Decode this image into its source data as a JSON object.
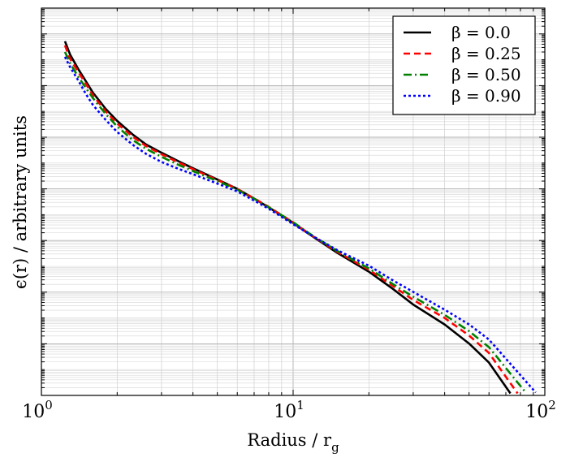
{
  "chart_data": {
    "type": "line",
    "xscale": "log",
    "yscale": "log",
    "xlim": [
      1,
      100
    ],
    "ylim": [
      1,
      1000000000000000
    ],
    "grid": true,
    "legend_position": "top-right",
    "xlabel_main": "Radius / r",
    "xlabel_sub": "g",
    "ylabel": "ϵ(r) / arbitrary units",
    "x_ticks": [
      {
        "value": 1,
        "base": "10",
        "exp": "0"
      },
      {
        "value": 10,
        "base": "10",
        "exp": "1"
      },
      {
        "value": 100,
        "base": "10",
        "exp": "2"
      }
    ],
    "series": [
      {
        "name": "β = 0.0",
        "color": "#000000",
        "dash": "solid",
        "x": [
          1.24,
          1.3,
          1.4,
          1.5,
          1.6,
          1.8,
          2.0,
          2.3,
          2.6,
          3.0,
          3.5,
          4.0,
          5.0,
          6.0,
          7.0,
          8.0,
          10.0,
          12.0,
          15.0,
          20.0,
          25.0,
          30.0,
          40.0,
          50.0,
          60.0,
          73.0
        ],
        "y": [
          52000000000000.0,
          16000000000000.0,
          4400000000000.0,
          1500000000000.0,
          540000000000.0,
          126000000000.0,
          43000000000.0,
          13000000000.0,
          5300000000.0,
          2500000000.0,
          1180000000.0,
          630000000.0,
          230000000.0,
          100000000.0,
          42000000.0,
          19000000.0,
          4800000.0,
          1400000.0,
          330000.0,
          62000.0,
          13000.0,
          3300.0,
          560.0,
          102.0,
          18.7,
          1.2
        ]
      },
      {
        "name": "β = 0.25",
        "color": "#ff0000",
        "dash": "8,5",
        "x": [
          1.24,
          1.3,
          1.4,
          1.5,
          1.6,
          1.8,
          2.0,
          2.3,
          2.6,
          3.0,
          3.5,
          4.0,
          5.0,
          6.0,
          7.0,
          8.0,
          10.0,
          12.0,
          15.0,
          20.0,
          25.0,
          30.0,
          40.0,
          50.0,
          60.0,
          78.0
        ],
        "y": [
          36000000000000.0,
          11000000000000.0,
          3400000000000.0,
          1200000000000.0,
          430000000000.0,
          100000000000.0,
          34000000000.0,
          10700000000.0,
          4600000000.0,
          2200000000.0,
          1060000000.0,
          580000000.0,
          220000000.0,
          99000000.0,
          43000000.0,
          20000000.0,
          5000000.0,
          1450000.0,
          360000.0,
          74000.0,
          16800.0,
          5000.0,
          1000.0,
          210.0,
          44.0,
          1.2
        ]
      },
      {
        "name": "β = 0.50",
        "color": "#008000",
        "dash": "10,4,2,4",
        "x": [
          1.24,
          1.3,
          1.4,
          1.5,
          1.6,
          1.8,
          2.0,
          2.3,
          2.6,
          3.0,
          3.5,
          4.0,
          5.0,
          6.0,
          7.0,
          8.0,
          10.0,
          12.0,
          15.0,
          20.0,
          25.0,
          30.0,
          40.0,
          50.0,
          60.0,
          84.0
        ],
        "y": [
          20000000000000.0,
          7400000000000.0,
          2200000000000.0,
          830000000000.0,
          330000000000.0,
          80000000000.0,
          26000000000.0,
          8000000000.0,
          3600000000.0,
          1730000000.0,
          860000000.0,
          490000000.0,
          200000000.0,
          93000000.0,
          41000000.0,
          19500000.0,
          5100000.0,
          1500000.0,
          390000.0,
          83000.0,
          20000.0,
          6600.0,
          1320.0,
          310.0,
          74.0,
          1.3
        ]
      },
      {
        "name": "β = 0.90",
        "color": "#0000ff",
        "dash": "3,3",
        "x": [
          1.24,
          1.3,
          1.4,
          1.5,
          1.6,
          1.8,
          2.0,
          2.3,
          2.6,
          3.0,
          3.5,
          4.0,
          5.0,
          6.0,
          7.0,
          8.0,
          10.0,
          12.0,
          15.0,
          20.0,
          25.0,
          30.0,
          40.0,
          50.0,
          60.0,
          92.0
        ],
        "y": [
          13000000000000.0,
          5200000000000.0,
          1600000000000.0,
          480000000000.0,
          180000000000.0,
          47000000000.0,
          16000000000.0,
          5200000000.0,
          2300000000.0,
          1100000000.0,
          600000000.0,
          370000000.0,
          160000000.0,
          80000000.0,
          35000000.0,
          17000000.0,
          4300000.0,
          1450000.0,
          420000.0,
          106000.0,
          28000.0,
          10200.0,
          2100.0,
          560.0,
          146.0,
          1.3
        ]
      }
    ]
  }
}
